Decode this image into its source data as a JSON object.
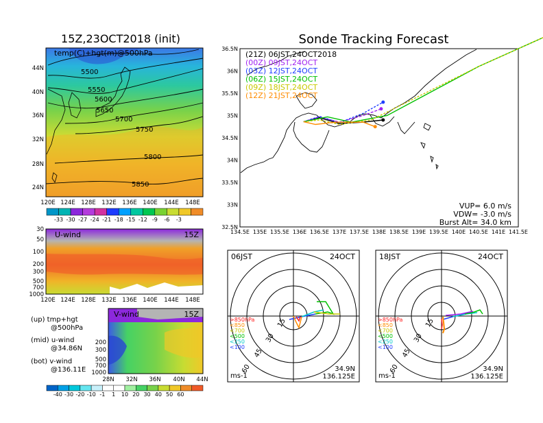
{
  "left_title": "15Z,23OCT2018 (init)",
  "right_title": "Sonde Tracking Forecast",
  "map500": {
    "label": "temp(C)+hgt(m)@500hPa",
    "x_ticks": [
      "120E",
      "124E",
      "128E",
      "132E",
      "136E",
      "140E",
      "144E",
      "148E"
    ],
    "y_ticks": [
      "44N",
      "40N",
      "36N",
      "32N",
      "28N",
      "24N"
    ],
    "contours": [
      "5500",
      "5550",
      "5600",
      "5650",
      "5700",
      "5750",
      "5800",
      "5850"
    ],
    "colorbar": [
      "-33",
      "-30",
      "-27",
      "-24",
      "-21",
      "-18",
      "-15",
      "-12",
      "-9",
      "-6",
      "-3"
    ]
  },
  "uwind": {
    "label": "U-wind",
    "time": "15Z",
    "y_ticks": [
      "30",
      "50",
      "100",
      "200",
      "300",
      "500",
      "700",
      "1000"
    ],
    "x_ticks": [
      "120E",
      "124E",
      "128E",
      "132E",
      "136E",
      "140E",
      "144E",
      "148E"
    ]
  },
  "vwind": {
    "label": "V-wind",
    "time": "15Z",
    "y_ticks": [
      "200",
      "300",
      "500",
      "700",
      "1000"
    ],
    "x_ticks": [
      "28N",
      "32N",
      "36N",
      "40N",
      "44N"
    ],
    "colorbar": [
      "-40",
      "-30",
      "-20",
      "-10",
      "-1",
      "1",
      "10",
      "20",
      "30",
      "40",
      "50",
      "60"
    ]
  },
  "legend_text": {
    "up_1": "(up) tmp+hgt",
    "up_2": "@500hPa",
    "mid_1": "(mid) u-wind",
    "mid_2": "@34.86N",
    "bot_1": "(bot) v-wind",
    "bot_2": "@136.11E"
  },
  "track_map": {
    "times": [
      {
        "label": "(21Z)  06JST,24OCT2018",
        "color": "#000000"
      },
      {
        "label": "(00Z)  09JST,24OCT",
        "color": "#a020f0"
      },
      {
        "label": "(03Z)  12JST,24OCT",
        "color": "#1e3cff"
      },
      {
        "label": "(06Z)  15JST,24OCT",
        "color": "#00c000"
      },
      {
        "label": "(09Z)  18JST,24OCT",
        "color": "#c8c800"
      },
      {
        "label": "(12Z)  21JST,24OCT",
        "color": "#ff8c00"
      }
    ],
    "x_ticks": [
      "134.5E",
      "135E",
      "135.5E",
      "136E",
      "136.5E",
      "137E",
      "137.5E",
      "138E",
      "138.5E",
      "139E",
      "139.5E",
      "140E",
      "140.5E",
      "141E",
      "141.5E"
    ],
    "y_ticks": [
      "36.5N",
      "36N",
      "35.5N",
      "35N",
      "34.5N",
      "34N",
      "33.5N",
      "33N",
      "32.5N"
    ],
    "vup": "VUP=  6.0 m/s",
    "vdw": "VDW=  -3.0 m/s",
    "burst": "Burst Alt=  34.0 km"
  },
  "polar_left": {
    "time": "06JST",
    "date": "24OCT",
    "rings": [
      "15",
      "30",
      "45",
      "60"
    ],
    "unit": "ms-1",
    "lat": "34.9N",
    "lon": "136.125E",
    "levels": [
      ">850hPa",
      "<850",
      "<700",
      "<500",
      "<250",
      "<100"
    ]
  },
  "polar_right": {
    "time": "18JST",
    "date": "24OCT",
    "rings": [
      "15",
      "30",
      "45",
      "60"
    ],
    "unit": "ms-1",
    "lat": "34.9N",
    "lon": "136.125E",
    "levels": [
      ">850hPa",
      "<850",
      "<700",
      "<500",
      "<250",
      "<100"
    ]
  },
  "chart_data": [
    {
      "type": "heatmap",
      "title": "temp(C)+hgt(m)@500hPa",
      "xlim": [
        120,
        150
      ],
      "ylim": [
        22,
        47
      ],
      "contour_levels_m": [
        5500,
        5550,
        5600,
        5650,
        5700,
        5750,
        5800,
        5850
      ],
      "colorbar_C": [
        -33,
        -30,
        -27,
        -24,
        -21,
        -18,
        -15,
        -12,
        -9,
        -6,
        -3
      ]
    },
    {
      "type": "heatmap",
      "title": "U-wind",
      "xlim": [
        120,
        150
      ],
      "pressure_levels_hPa": [
        30,
        50,
        100,
        200,
        300,
        500,
        700,
        1000
      ],
      "lat": "34.86N"
    },
    {
      "type": "heatmap",
      "title": "V-wind",
      "xlim": [
        28,
        44
      ],
      "pressure_levels_hPa": [
        200,
        300,
        500,
        700,
        1000
      ],
      "lon": "136.11E",
      "colorbar_ms": [
        -40,
        -30,
        -20,
        -10,
        -1,
        1,
        10,
        20,
        30,
        40,
        50,
        60
      ]
    },
    {
      "type": "line",
      "title": "Sonde Tracking Forecast",
      "xlim": [
        134.5,
        141.5
      ],
      "ylim": [
        32.5,
        36.5
      ],
      "series": [
        {
          "name": "(21Z)",
          "x": [
            136.1,
            136.5,
            137.0,
            137.6,
            138.1
          ],
          "y": [
            34.86,
            34.95,
            34.82,
            34.85,
            34.9
          ]
        },
        {
          "name": "(00Z)",
          "x": [
            136.1,
            136.5,
            137.0,
            137.6,
            138.05
          ],
          "y": [
            34.86,
            34.97,
            34.85,
            35.0,
            35.15
          ]
        },
        {
          "name": "(03Z)",
          "x": [
            136.1,
            136.5,
            137.0,
            137.6,
            138.1
          ],
          "y": [
            34.86,
            34.98,
            34.84,
            35.05,
            35.3
          ]
        },
        {
          "name": "(06Z)",
          "x": [
            136.1,
            136.7,
            137.3,
            138.2,
            140.5,
            142.5
          ],
          "y": [
            34.86,
            34.97,
            34.85,
            35.0,
            36.1,
            36.9
          ]
        },
        {
          "name": "(09Z)",
          "x": [
            136.1,
            136.5,
            137.0,
            137.8,
            140.5,
            142.5
          ],
          "y": [
            34.86,
            34.9,
            34.8,
            34.9,
            36.1,
            36.9
          ]
        },
        {
          "name": "(12Z)",
          "x": [
            136.1,
            136.4,
            136.9,
            137.6,
            137.9
          ],
          "y": [
            34.86,
            34.8,
            34.85,
            34.85,
            34.75
          ]
        }
      ]
    }
  ]
}
